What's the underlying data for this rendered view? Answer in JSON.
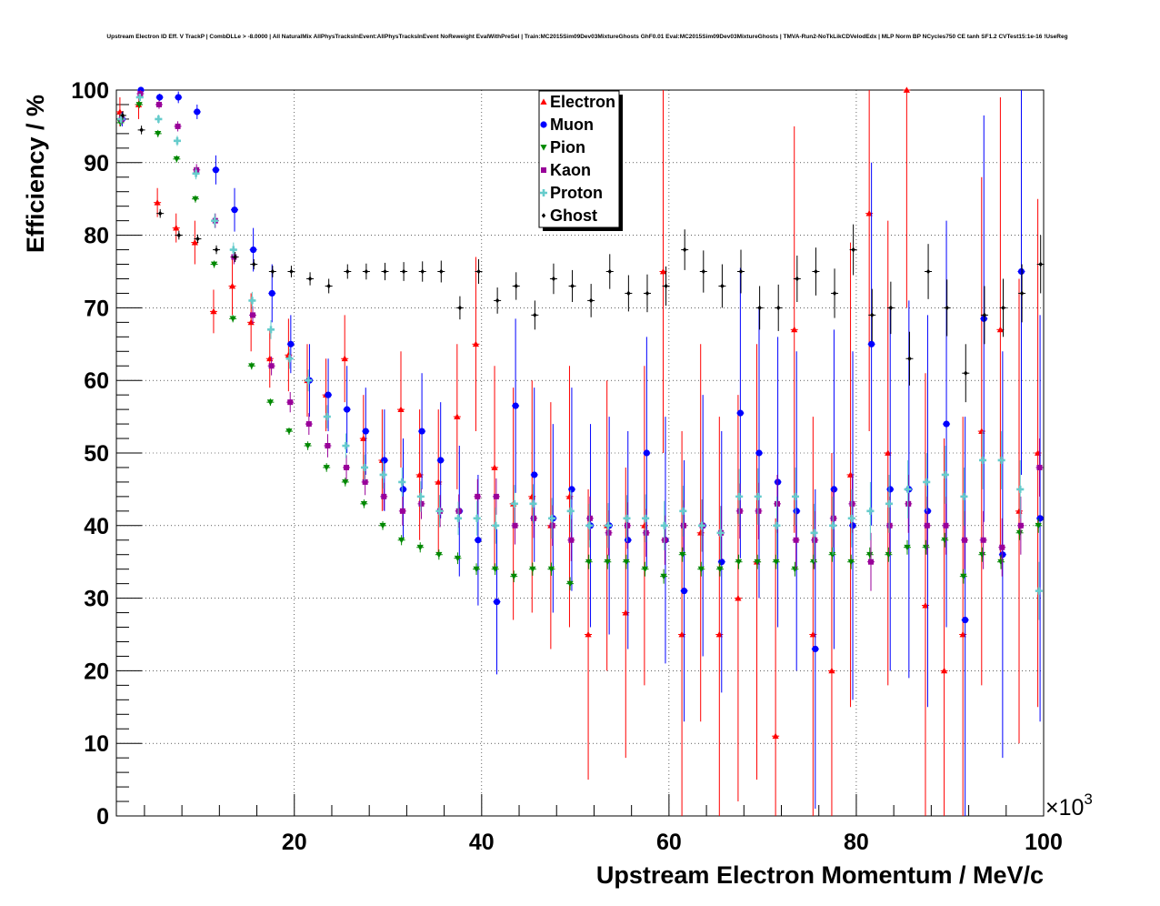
{
  "chart_data": {
    "type": "scatter",
    "title": "Upstream Electron ID Eff. V TrackP | CombDLLe > -8.0000 | All NaturalMix AllPhysTracksInEvent:AllPhysTracksInEvent NoReweight EvalWithPreSel | Train:MC2015Sim09Dev03MixtureGhosts GhF0.01 Eval:MC2015Sim09Dev03MixtureGhosts | TMVA-Run2-NoTkLikCDVelodEdx | MLP Norm BP NCycles750 CE tanh SF1.2 CVTest15:1e-16 !UseReg",
    "xlabel": "Upstream Electron Momentum / MeV/c",
    "ylabel": "Efficiency / %",
    "x_exponent_label": "×10",
    "x_exponent_power": "3",
    "xlim": [
      1,
      100
    ],
    "ylim": [
      0,
      100
    ],
    "x_ticks": [
      20,
      40,
      60,
      80,
      100
    ],
    "y_ticks": [
      0,
      10,
      20,
      30,
      40,
      50,
      60,
      70,
      80,
      90,
      100
    ],
    "grid": true,
    "legend_position": "top-center",
    "bin_centers": [
      1.5,
      3.5,
      5.5,
      7.5,
      9.5,
      11.5,
      13.5,
      15.5,
      17.5,
      19.5,
      21.5,
      23.5,
      25.5,
      27.5,
      29.5,
      31.5,
      33.5,
      35.5,
      37.5,
      39.5,
      41.5,
      43.5,
      45.5,
      47.5,
      49.5,
      51.5,
      53.5,
      55.5,
      57.5,
      59.5,
      61.5,
      63.5,
      65.5,
      67.5,
      69.5,
      71.5,
      73.5,
      75.5,
      77.5,
      79.5,
      81.5,
      83.5,
      85.5,
      87.5,
      89.5,
      91.5,
      93.5,
      95.5,
      97.5,
      99.5
    ],
    "series": [
      {
        "name": "Electron",
        "color": "#ff0000",
        "marker": "triangle-up",
        "values": [
          97,
          98,
          84.5,
          81,
          79,
          69.5,
          73,
          68,
          63,
          63.5,
          60,
          58,
          63,
          52,
          49,
          56,
          47,
          46,
          55,
          65,
          48,
          43,
          44,
          40,
          44,
          25,
          40,
          28,
          40,
          75,
          25,
          39,
          25,
          30,
          35,
          11,
          67,
          25,
          20,
          47,
          83,
          50,
          100,
          29,
          20,
          25,
          53,
          67,
          42,
          50
        ],
        "errors": [
          2,
          2,
          2,
          2,
          3,
          3,
          4,
          4,
          4,
          5,
          5,
          5,
          6,
          6,
          7,
          8,
          9,
          10,
          10,
          12,
          14,
          16,
          16,
          17,
          18,
          20,
          20,
          20,
          22,
          25,
          28,
          26,
          30,
          28,
          30,
          30,
          28,
          30,
          30,
          32,
          30,
          32,
          30,
          32,
          32,
          30,
          35,
          32,
          32,
          35
        ]
      },
      {
        "name": "Muon",
        "color": "#0000ff",
        "marker": "circle",
        "values": [
          96,
          100,
          99,
          99,
          97,
          89,
          83.5,
          78,
          72,
          65,
          60,
          58,
          56,
          53,
          49,
          45,
          53,
          49,
          42,
          38,
          29.5,
          56.5,
          47,
          41,
          45,
          40,
          40,
          38,
          50,
          38,
          31,
          40,
          35,
          55.5,
          50,
          46,
          42,
          23,
          45,
          40,
          65,
          45,
          45,
          42,
          54,
          27,
          68.5,
          36,
          75,
          41
        ],
        "errors": [
          1,
          0.5,
          0.5,
          0.8,
          1,
          2,
          3,
          3,
          4,
          4,
          5,
          5,
          6,
          6,
          7,
          7,
          8,
          8,
          9,
          9,
          10,
          12,
          12,
          13,
          14,
          14,
          15,
          15,
          16,
          17,
          18,
          18,
          18,
          20,
          20,
          20,
          22,
          22,
          22,
          24,
          25,
          25,
          26,
          27,
          28,
          28,
          28,
          28,
          28,
          28
        ]
      },
      {
        "name": "Pion",
        "color": "#008800",
        "marker": "triangle-down",
        "values": [
          95.5,
          98,
          94,
          90.5,
          85,
          76,
          68.5,
          62,
          57,
          53,
          51,
          48,
          46,
          43,
          40,
          38,
          37,
          36,
          35.5,
          34,
          34,
          33,
          34,
          34,
          32,
          35,
          35,
          35,
          34,
          33,
          36,
          34,
          34,
          35,
          35,
          35,
          34,
          35,
          36,
          35,
          36,
          36,
          37,
          37,
          38,
          33,
          36,
          35,
          39,
          40
        ],
        "errors": [
          0.5,
          0.5,
          0.5,
          0.5,
          0.5,
          0.5,
          0.5,
          0.5,
          0.5,
          0.5,
          0.6,
          0.6,
          0.6,
          0.6,
          0.6,
          0.7,
          0.7,
          0.7,
          0.8,
          0.8,
          0.8,
          0.8,
          0.9,
          0.9,
          0.9,
          1,
          1,
          1,
          1,
          1,
          1,
          1,
          1,
          1,
          1,
          1,
          1,
          1,
          1,
          1,
          1,
          1,
          1,
          1,
          1,
          1,
          1,
          1,
          1,
          1
        ]
      },
      {
        "name": "Kaon",
        "color": "#990099",
        "marker": "square",
        "values": [
          96,
          99.5,
          98,
          95,
          89,
          82,
          77,
          69,
          62,
          57,
          54,
          51,
          48,
          46,
          44,
          42,
          43,
          42,
          42,
          44,
          44,
          40,
          41,
          40,
          38,
          41,
          39,
          40,
          39,
          38,
          40,
          40,
          39,
          42,
          42,
          43,
          38,
          38,
          41,
          43,
          35,
          40,
          43,
          40,
          40,
          38,
          38,
          37,
          40,
          48
        ],
        "errors": [
          0.8,
          0.5,
          0.6,
          0.7,
          0.8,
          1,
          1,
          1.2,
          1.3,
          1.4,
          1.5,
          1.6,
          1.7,
          1.8,
          1.9,
          2,
          2.1,
          2.2,
          2.3,
          2.4,
          2.5,
          2.6,
          2.7,
          2.8,
          2.9,
          3,
          3.1,
          3.2,
          3.3,
          3.4,
          3.5,
          3.6,
          3.7,
          3.8,
          3.9,
          4,
          4,
          4,
          4,
          4,
          4,
          4,
          4,
          4,
          4,
          4,
          4,
          4,
          4,
          4
        ]
      },
      {
        "name": "Proton",
        "color": "#66cccc",
        "marker": "cross",
        "values": [
          96,
          99,
          96,
          93,
          88.5,
          82,
          78,
          71,
          67,
          63,
          60,
          55,
          51,
          48,
          47,
          46,
          44,
          42,
          41,
          41,
          40,
          43,
          43,
          41,
          42,
          40,
          40,
          41,
          41,
          40,
          42,
          40,
          39,
          44,
          44,
          40,
          44,
          39,
          40,
          41,
          42,
          43,
          45,
          46,
          47,
          44,
          49,
          49,
          45,
          31
        ],
        "errors": [
          0.8,
          0.5,
          0.6,
          0.7,
          0.8,
          1,
          1,
          1.2,
          1.3,
          1.4,
          1.5,
          1.6,
          1.7,
          1.8,
          1.9,
          2,
          2.1,
          2.2,
          2.3,
          2.4,
          2.5,
          2.6,
          2.7,
          2.8,
          2.9,
          3,
          3.1,
          3.2,
          3.3,
          3.4,
          3.5,
          3.6,
          3.7,
          3.8,
          3.9,
          4,
          4,
          4,
          4,
          4,
          4,
          4,
          4,
          4,
          4,
          4,
          4,
          4,
          4,
          4
        ]
      },
      {
        "name": "Ghost",
        "color": "#000000",
        "marker": "diamond",
        "values": [
          96.5,
          94.5,
          83,
          80,
          79.5,
          78,
          77,
          76,
          75,
          75,
          74,
          73,
          75,
          75,
          75,
          75,
          75,
          75,
          70,
          75,
          71,
          73,
          69,
          74,
          73,
          71,
          75,
          72,
          72,
          73,
          78,
          75,
          73,
          75,
          70,
          70,
          74,
          75,
          72,
          78,
          69,
          70,
          63,
          75,
          70,
          61,
          69,
          70,
          72,
          76
        ],
        "errors": [
          0.6,
          0.6,
          0.6,
          0.6,
          0.6,
          0.6,
          0.7,
          0.7,
          0.8,
          0.8,
          0.9,
          1,
          1,
          1.1,
          1.2,
          1.3,
          1.4,
          1.5,
          1.6,
          1.7,
          1.8,
          1.9,
          2,
          2.1,
          2.2,
          2.3,
          2.4,
          2.5,
          2.6,
          2.7,
          2.8,
          2.9,
          3,
          3,
          3,
          3.2,
          3.2,
          3.3,
          3.4,
          3.5,
          3.6,
          3.6,
          3.7,
          3.8,
          3.9,
          4,
          4,
          4,
          4,
          4
        ]
      }
    ]
  }
}
